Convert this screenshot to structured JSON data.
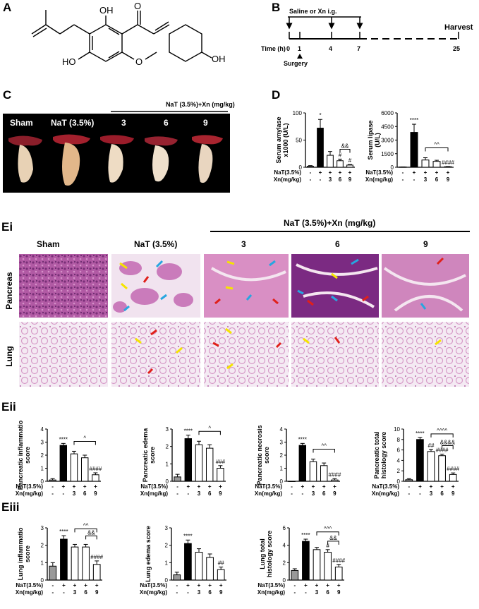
{
  "panels": {
    "A": "A",
    "B": "B",
    "C": "C",
    "D": "D",
    "Ei": "Ei",
    "Eii": "Eii",
    "Eiii": "Eiii"
  },
  "timeline": {
    "title": "Saline or Xn i.g.",
    "harvest": "Harvest",
    "time_label": "Time (h)",
    "ticks": [
      "0",
      "1",
      "4",
      "7",
      "25"
    ],
    "surgery": "Surgery"
  },
  "panelC": {
    "group_header": "NaT (3.5%)+Xn (mg/kg)",
    "labels": [
      "Sham",
      "NaT (3.5%)",
      "3",
      "6",
      "9"
    ]
  },
  "panelEi": {
    "group_header": "NaT (3.5%)+Xn (mg/kg)",
    "columns": [
      "Sham",
      "NaT (3.5%)",
      "3",
      "6",
      "9"
    ],
    "rows": [
      "Pancreas",
      "Lung"
    ]
  },
  "groups": {
    "row1_label": "NaT(3.5%)",
    "row2_label": "Xn(mg/kg)",
    "row1": [
      "-",
      "+",
      "+",
      "+",
      "+"
    ],
    "row2": [
      "-",
      "-",
      "3",
      "6",
      "9"
    ]
  },
  "bar_colors": [
    "#999999",
    "#000000",
    "#ffffff",
    "#ffffff",
    "#ffffff"
  ],
  "chart_data": [
    {
      "type": "bar",
      "id": "serum-amylase",
      "ylabel": "Serum amylase x1000 (U/L)",
      "ylim": [
        0,
        100
      ],
      "yticks": [
        0,
        50,
        100
      ],
      "values": [
        2,
        72,
        22,
        12,
        4
      ],
      "errors": [
        1,
        16,
        7,
        3,
        1
      ],
      "marks": [
        "",
        "*",
        "",
        "#",
        "#"
      ],
      "brackets": [
        {
          "from": 3,
          "to": 4,
          "label": "&&"
        }
      ]
    },
    {
      "type": "bar",
      "id": "serum-lipase",
      "ylabel": "Serum lipase (U/L)",
      "ylim": [
        0,
        6000
      ],
      "yticks": [
        0,
        1500,
        3000,
        4500,
        6000
      ],
      "values": [
        30,
        3850,
        800,
        650,
        60
      ],
      "errors": [
        10,
        900,
        250,
        120,
        20
      ],
      "marks": [
        "",
        "****",
        "",
        "",
        "####"
      ],
      "brackets": [
        {
          "from": 2,
          "to": 4,
          "label": "^^"
        }
      ]
    },
    {
      "type": "bar",
      "id": "pancreatic-inflammation",
      "ylabel": "Pancreatic inflammatio score",
      "ylim": [
        0,
        4
      ],
      "yticks": [
        0,
        1,
        2,
        3,
        4
      ],
      "values": [
        0.1,
        2.75,
        2.1,
        1.8,
        0.5
      ],
      "errors": [
        0.1,
        0.15,
        0.2,
        0.2,
        0.15
      ],
      "marks": [
        "",
        "****",
        "",
        "",
        "####"
      ],
      "brackets": [
        {
          "from": 2,
          "to": 4,
          "label": "^"
        }
      ]
    },
    {
      "type": "bar",
      "id": "pancreatic-edema",
      "ylabel": "Pancreatic edema score",
      "ylim": [
        0,
        3
      ],
      "yticks": [
        0,
        1,
        2,
        3
      ],
      "values": [
        0.25,
        2.45,
        2.1,
        1.9,
        0.75
      ],
      "errors": [
        0.15,
        0.2,
        0.2,
        0.2,
        0.15
      ],
      "marks": [
        "",
        "****",
        "",
        "",
        "###"
      ],
      "brackets": [
        {
          "from": 2,
          "to": 4,
          "label": "^"
        }
      ]
    },
    {
      "type": "bar",
      "id": "pancreatic-necrosis",
      "ylabel": "Pancreatic necrosis score",
      "ylim": [
        0,
        4
      ],
      "yticks": [
        0,
        1,
        2,
        3,
        4
      ],
      "values": [
        0,
        2.75,
        1.5,
        1.2,
        0.1
      ],
      "errors": [
        0,
        0.15,
        0.2,
        0.2,
        0.1
      ],
      "marks": [
        "",
        "****",
        "",
        "",
        "####"
      ],
      "brackets": [
        {
          "from": 2,
          "to": 4,
          "label": "^^"
        }
      ]
    },
    {
      "type": "bar",
      "id": "pancreatic-total",
      "ylabel": "Pancreatic total histology score",
      "ylim": [
        0,
        10
      ],
      "yticks": [
        0,
        2,
        4,
        6,
        8,
        10
      ],
      "values": [
        0.3,
        8.0,
        5.7,
        4.9,
        1.3
      ],
      "errors": [
        0.2,
        0.4,
        0.4,
        0.3,
        0.3
      ],
      "marks": [
        "",
        "****",
        "##",
        "####",
        "####"
      ],
      "brackets": [
        {
          "from": 2,
          "to": 4,
          "label": "^^^^"
        },
        {
          "from": 3,
          "to": 4,
          "label": "&&&&"
        }
      ]
    },
    {
      "type": "bar",
      "id": "lung-inflammation",
      "ylabel": "Lung inflammatio score",
      "ylim": [
        0,
        3
      ],
      "yticks": [
        0,
        1,
        2,
        3
      ],
      "values": [
        0.8,
        2.35,
        1.9,
        1.9,
        0.9
      ],
      "errors": [
        0.2,
        0.2,
        0.15,
        0.15,
        0.2
      ],
      "marks": [
        "",
        "****",
        "",
        "",
        "####"
      ],
      "brackets": [
        {
          "from": 2,
          "to": 4,
          "label": "^^"
        },
        {
          "from": 3,
          "to": 4,
          "label": "&&"
        }
      ]
    },
    {
      "type": "bar",
      "id": "lung-edema",
      "ylabel": "Lung edema score",
      "ylim": [
        0,
        3
      ],
      "yticks": [
        0,
        1,
        2,
        3
      ],
      "values": [
        0.3,
        2.1,
        1.6,
        1.3,
        0.6
      ],
      "errors": [
        0.15,
        0.2,
        0.2,
        0.2,
        0.15
      ],
      "marks": [
        "",
        "****",
        "",
        "",
        "##"
      ],
      "brackets": []
    },
    {
      "type": "bar",
      "id": "lung-total",
      "ylabel": "Lung total histology score",
      "ylim": [
        0,
        6
      ],
      "yticks": [
        0,
        2,
        4,
        6
      ],
      "values": [
        1.1,
        4.45,
        3.5,
        3.2,
        1.5
      ],
      "errors": [
        0.2,
        0.25,
        0.25,
        0.3,
        0.3
      ],
      "marks": [
        "",
        "****",
        "",
        "#",
        "####"
      ],
      "brackets": [
        {
          "from": 2,
          "to": 4,
          "label": "^^^"
        },
        {
          "from": 3,
          "to": 4,
          "label": "&&"
        }
      ]
    }
  ]
}
